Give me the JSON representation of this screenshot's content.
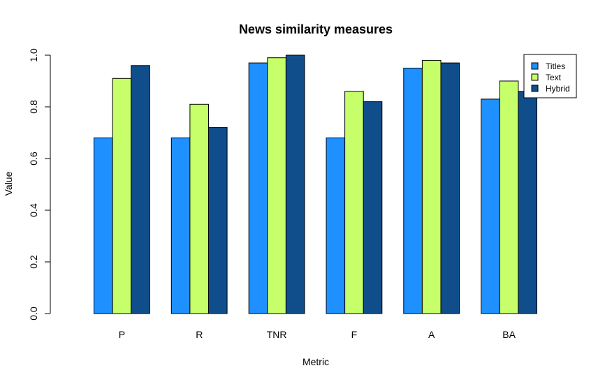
{
  "chart_data": {
    "type": "bar",
    "title": "News similarity measures",
    "xlabel": "Metric",
    "ylabel": "Value",
    "ylim": [
      0,
      1
    ],
    "yticks": [
      "0.0",
      "0.2",
      "0.4",
      "0.6",
      "0.8",
      "1.0"
    ],
    "categories": [
      "P",
      "R",
      "TNR",
      "F",
      "A",
      "BA"
    ],
    "series": [
      {
        "name": "Titles",
        "color": "#1e90ff",
        "values": [
          0.68,
          0.68,
          0.97,
          0.68,
          0.95,
          0.83
        ]
      },
      {
        "name": "Text",
        "color": "#c6ff6a",
        "values": [
          0.91,
          0.81,
          0.99,
          0.86,
          0.98,
          0.9
        ]
      },
      {
        "name": "Hybrid",
        "color": "#104e8b",
        "values": [
          0.96,
          0.72,
          1.0,
          0.82,
          0.97,
          0.86
        ]
      }
    ],
    "legend_position": "top-right",
    "grid": false
  }
}
